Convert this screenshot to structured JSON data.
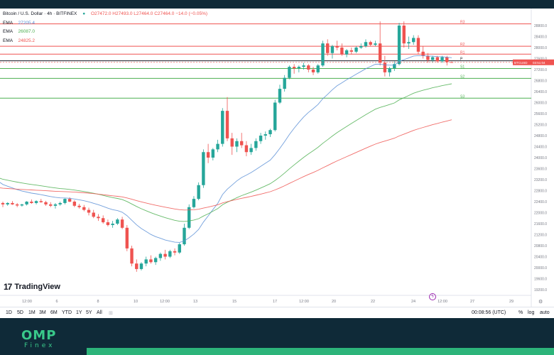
{
  "symbol": {
    "title": "Bitcoin / U.S. Dollar · 4h · BITFINEX",
    "ohlc": "O27472.0 H27493.0 L27464.0 C27464.0 −14.0 (−0.05%)",
    "status_color": "#26a69a"
  },
  "indicators": [
    {
      "label": "EMA",
      "value": "27205.4",
      "color": "#5b8fd6"
    },
    {
      "label": "EMA",
      "value": "26087.0",
      "color": "#4caf50"
    },
    {
      "label": "EMA",
      "value": "24825.2",
      "color": "#ef5350"
    }
  ],
  "price_axis": {
    "ticks": [
      "28800.0",
      "28400.0",
      "28000.0",
      "27600.0",
      "27200.0",
      "26800.0",
      "26400.0",
      "26000.0",
      "25600.0",
      "25200.0",
      "24800.0",
      "24400.0",
      "24000.0",
      "23600.0",
      "23200.0",
      "22800.0",
      "22400.0",
      "22000.0",
      "21600.0",
      "21200.0",
      "20800.0",
      "20400.0",
      "20000.0",
      "19600.0",
      "19200.0"
    ],
    "current_label": "BTCUSD",
    "current_time": "03:51:04"
  },
  "time_axis": {
    "ticks": [
      "12:00",
      "6",
      "8",
      "10",
      "12:00",
      "13",
      "15",
      "17",
      "12:00",
      "20",
      "22",
      "24",
      "12:00",
      "27",
      "29"
    ]
  },
  "pivots": [
    {
      "label": "R3",
      "price": 28860
    },
    {
      "label": "R2",
      "price": 28050
    },
    {
      "label": "R1",
      "price": 27760
    },
    {
      "label": "P",
      "price": 27520
    },
    {
      "label": "S1",
      "price": 27240
    },
    {
      "label": "S2",
      "price": 26880
    },
    {
      "label": "S3",
      "price": 26160
    }
  ],
  "branding": {
    "tradingview": "TradingView",
    "tradingview_mark": "17",
    "omp": "OMP",
    "finex": "Finex"
  },
  "timeframes": [
    "1D",
    "5D",
    "1M",
    "3M",
    "6M",
    "YTD",
    "1Y",
    "5Y",
    "All"
  ],
  "status_right": {
    "clock": "00:08:56 (UTC)",
    "percent": "%",
    "log": "log",
    "auto": "auto"
  },
  "chart_data": {
    "type": "line",
    "title": "Bitcoin / U.S. Dollar · 4h · BITFINEX",
    "ylim": [
      19000,
      29000
    ],
    "candles": [
      [
        22350,
        22400,
        22200,
        22300
      ],
      [
        22300,
        22380,
        22250,
        22350
      ],
      [
        22350,
        22420,
        22280,
        22300
      ],
      [
        22300,
        22350,
        22200,
        22260
      ],
      [
        22260,
        22320,
        22220,
        22300
      ],
      [
        22300,
        22420,
        22260,
        22400
      ],
      [
        22400,
        22480,
        22320,
        22350
      ],
      [
        22350,
        22450,
        22300,
        22420
      ],
      [
        22420,
        22500,
        22360,
        22380
      ],
      [
        22380,
        22430,
        22250,
        22300
      ],
      [
        22300,
        22380,
        22200,
        22250
      ],
      [
        22250,
        22350,
        22150,
        22300
      ],
      [
        22300,
        22400,
        22250,
        22350
      ],
      [
        22350,
        22520,
        22300,
        22500
      ],
      [
        22500,
        22560,
        22380,
        22400
      ],
      [
        22400,
        22450,
        22200,
        22250
      ],
      [
        22250,
        22320,
        22150,
        22200
      ],
      [
        22200,
        22280,
        22050,
        22100
      ],
      [
        22100,
        22180,
        21900,
        22000
      ],
      [
        22000,
        22100,
        21800,
        21850
      ],
      [
        21850,
        21950,
        21700,
        21800
      ],
      [
        21800,
        21900,
        21600,
        21650
      ],
      [
        21650,
        21750,
        21500,
        21550
      ],
      [
        21550,
        21700,
        21450,
        21600
      ],
      [
        21600,
        21800,
        21550,
        21750
      ],
      [
        21750,
        21850,
        21400,
        21450
      ],
      [
        21450,
        21550,
        20600,
        20700
      ],
      [
        20700,
        20800,
        20050,
        20150
      ],
      [
        20150,
        20300,
        19850,
        19950
      ],
      [
        19950,
        20200,
        19900,
        20150
      ],
      [
        20150,
        20400,
        20050,
        20300
      ],
      [
        20300,
        20450,
        20150,
        20200
      ],
      [
        20200,
        20400,
        20100,
        20350
      ],
      [
        20350,
        20550,
        20250,
        20500
      ],
      [
        20500,
        20650,
        20300,
        20400
      ],
      [
        20400,
        20650,
        20350,
        20600
      ],
      [
        20600,
        20700,
        20450,
        20550
      ],
      [
        20550,
        20900,
        20500,
        20850
      ],
      [
        20850,
        21600,
        20800,
        21450
      ],
      [
        21450,
        22300,
        21400,
        22200
      ],
      [
        22200,
        22600,
        22150,
        22500
      ],
      [
        22500,
        23100,
        22450,
        23000
      ],
      [
        23000,
        24300,
        22900,
        24200
      ],
      [
        24200,
        24500,
        23800,
        24000
      ],
      [
        24000,
        24350,
        23900,
        24300
      ],
      [
        24300,
        24650,
        24200,
        24500
      ],
      [
        24500,
        25800,
        24400,
        25700
      ],
      [
        25700,
        26200,
        24600,
        24700
      ],
      [
        24700,
        24900,
        24100,
        24400
      ],
      [
        24400,
        24700,
        24200,
        24600
      ],
      [
        24600,
        24900,
        24350,
        24450
      ],
      [
        24450,
        24600,
        24050,
        24200
      ],
      [
        24200,
        24500,
        24100,
        24350
      ],
      [
        24350,
        24700,
        24250,
        24600
      ],
      [
        24600,
        24900,
        24500,
        24800
      ],
      [
        24800,
        24950,
        24650,
        24850
      ],
      [
        24850,
        25050,
        24750,
        25000
      ],
      [
        25000,
        26100,
        24950,
        26000
      ],
      [
        26000,
        26650,
        25950,
        26500
      ],
      [
        26500,
        27000,
        26400,
        26900
      ],
      [
        26900,
        27350,
        26850,
        27300
      ],
      [
        27300,
        27400,
        27050,
        27250
      ],
      [
        27250,
        27350,
        27100,
        27300
      ],
      [
        27300,
        27450,
        27200,
        27350
      ],
      [
        27350,
        27400,
        27100,
        27200
      ],
      [
        27200,
        27300,
        27000,
        27100
      ],
      [
        27100,
        27400,
        27050,
        27350
      ],
      [
        27350,
        28250,
        27300,
        28150
      ],
      [
        28150,
        28300,
        27700,
        27800
      ],
      [
        27800,
        28100,
        27600,
        28050
      ],
      [
        28050,
        28250,
        27900,
        28000
      ],
      [
        28000,
        28150,
        27700,
        27750
      ],
      [
        27750,
        27950,
        27650,
        27900
      ],
      [
        27900,
        28000,
        27750,
        27850
      ],
      [
        27850,
        28050,
        27800,
        28000
      ],
      [
        28000,
        28150,
        27950,
        28050
      ],
      [
        28050,
        28300,
        28000,
        28200
      ],
      [
        28200,
        28250,
        28050,
        28100
      ],
      [
        28100,
        28250,
        28050,
        28150
      ],
      [
        28150,
        28950,
        27350,
        27450
      ],
      [
        27450,
        27700,
        26950,
        27100
      ],
      [
        27100,
        27300,
        26950,
        27250
      ],
      [
        27250,
        27500,
        27150,
        27400
      ],
      [
        27400,
        28900,
        27350,
        28800
      ],
      [
        28800,
        28950,
        28000,
        28150
      ],
      [
        28150,
        28400,
        27950,
        28200
      ],
      [
        28200,
        28450,
        28100,
        28350
      ],
      [
        28350,
        28450,
        27750,
        27850
      ],
      [
        27850,
        28050,
        27600,
        27700
      ],
      [
        27700,
        27800,
        27450,
        27550
      ],
      [
        27550,
        27700,
        27450,
        27650
      ],
      [
        27650,
        27700,
        27450,
        27500
      ],
      [
        27500,
        27700,
        27450,
        27650
      ],
      [
        27650,
        27700,
        27350,
        27470
      ],
      [
        27472,
        27493,
        27464,
        27464
      ]
    ]
  }
}
